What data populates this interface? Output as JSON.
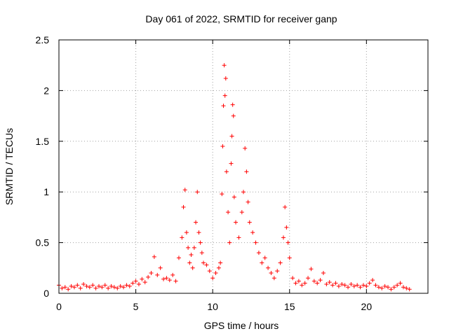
{
  "chart_data": {
    "type": "scatter",
    "title": "Day 061 of 2022, SRMTID for receiver ganp",
    "xlabel": "GPS time / hours",
    "ylabel": "SRMTID / TECUs",
    "xlim": [
      0,
      24
    ],
    "ylim": [
      0,
      2.5
    ],
    "xticks": [
      0,
      5,
      10,
      15,
      20
    ],
    "yticks": [
      0,
      0.5,
      1,
      1.5,
      2,
      2.5
    ],
    "xtick_labels": [
      "0",
      "5",
      "10",
      "15",
      "20"
    ],
    "ytick_labels": [
      "0",
      "0.5",
      "1",
      "1.5",
      "2",
      "2.5"
    ],
    "grid": true,
    "marker": "+",
    "color": "#ff0000",
    "series": [
      {
        "name": "SRMTID",
        "points": [
          [
            0.0,
            0.08
          ],
          [
            0.2,
            0.05
          ],
          [
            0.4,
            0.06
          ],
          [
            0.6,
            0.04
          ],
          [
            0.8,
            0.07
          ],
          [
            1.0,
            0.06
          ],
          [
            1.2,
            0.08
          ],
          [
            1.4,
            0.05
          ],
          [
            1.6,
            0.09
          ],
          [
            1.8,
            0.07
          ],
          [
            2.0,
            0.06
          ],
          [
            2.2,
            0.08
          ],
          [
            2.4,
            0.05
          ],
          [
            2.6,
            0.07
          ],
          [
            2.8,
            0.06
          ],
          [
            3.0,
            0.08
          ],
          [
            3.2,
            0.05
          ],
          [
            3.4,
            0.07
          ],
          [
            3.6,
            0.06
          ],
          [
            3.8,
            0.05
          ],
          [
            4.0,
            0.07
          ],
          [
            4.2,
            0.06
          ],
          [
            4.4,
            0.08
          ],
          [
            4.6,
            0.07
          ],
          [
            4.8,
            0.1
          ],
          [
            5.0,
            0.12
          ],
          [
            5.2,
            0.09
          ],
          [
            5.4,
            0.14
          ],
          [
            5.6,
            0.11
          ],
          [
            5.8,
            0.16
          ],
          [
            6.0,
            0.2
          ],
          [
            6.2,
            0.36
          ],
          [
            6.4,
            0.18
          ],
          [
            6.6,
            0.25
          ],
          [
            6.8,
            0.14
          ],
          [
            7.0,
            0.15
          ],
          [
            7.2,
            0.13
          ],
          [
            7.4,
            0.18
          ],
          [
            7.6,
            0.12
          ],
          [
            7.8,
            0.35
          ],
          [
            8.0,
            0.55
          ],
          [
            8.1,
            0.85
          ],
          [
            8.2,
            1.02
          ],
          [
            8.3,
            0.6
          ],
          [
            8.4,
            0.45
          ],
          [
            8.5,
            0.3
          ],
          [
            8.6,
            0.38
          ],
          [
            8.7,
            0.25
          ],
          [
            8.8,
            0.45
          ],
          [
            8.9,
            0.7
          ],
          [
            9.0,
            1.0
          ],
          [
            9.1,
            0.6
          ],
          [
            9.2,
            0.5
          ],
          [
            9.3,
            0.4
          ],
          [
            9.4,
            0.3
          ],
          [
            9.6,
            0.28
          ],
          [
            9.8,
            0.22
          ],
          [
            10.0,
            0.15
          ],
          [
            10.2,
            0.2
          ],
          [
            10.4,
            0.25
          ],
          [
            10.5,
            0.3
          ],
          [
            10.6,
            0.98
          ],
          [
            10.65,
            1.45
          ],
          [
            10.7,
            1.85
          ],
          [
            10.75,
            2.25
          ],
          [
            10.8,
            1.95
          ],
          [
            10.85,
            2.12
          ],
          [
            10.9,
            1.2
          ],
          [
            11.0,
            0.8
          ],
          [
            11.1,
            0.5
          ],
          [
            11.2,
            1.28
          ],
          [
            11.25,
            1.55
          ],
          [
            11.3,
            1.86
          ],
          [
            11.35,
            1.75
          ],
          [
            11.4,
            0.95
          ],
          [
            11.5,
            0.7
          ],
          [
            11.7,
            0.55
          ],
          [
            11.9,
            0.8
          ],
          [
            12.0,
            1.0
          ],
          [
            12.1,
            1.43
          ],
          [
            12.2,
            1.2
          ],
          [
            12.3,
            0.9
          ],
          [
            12.4,
            0.7
          ],
          [
            12.6,
            0.6
          ],
          [
            12.8,
            0.5
          ],
          [
            13.0,
            0.4
          ],
          [
            13.2,
            0.3
          ],
          [
            13.4,
            0.35
          ],
          [
            13.6,
            0.25
          ],
          [
            13.8,
            0.2
          ],
          [
            14.0,
            0.15
          ],
          [
            14.2,
            0.22
          ],
          [
            14.4,
            0.3
          ],
          [
            14.6,
            0.55
          ],
          [
            14.7,
            0.85
          ],
          [
            14.8,
            0.65
          ],
          [
            14.9,
            0.5
          ],
          [
            15.0,
            0.35
          ],
          [
            15.2,
            0.15
          ],
          [
            15.4,
            0.1
          ],
          [
            15.6,
            0.12
          ],
          [
            15.8,
            0.08
          ],
          [
            16.0,
            0.1
          ],
          [
            16.2,
            0.15
          ],
          [
            16.4,
            0.24
          ],
          [
            16.6,
            0.12
          ],
          [
            16.8,
            0.1
          ],
          [
            17.0,
            0.13
          ],
          [
            17.2,
            0.2
          ],
          [
            17.4,
            0.09
          ],
          [
            17.6,
            0.11
          ],
          [
            17.8,
            0.08
          ],
          [
            18.0,
            0.1
          ],
          [
            18.2,
            0.07
          ],
          [
            18.4,
            0.09
          ],
          [
            18.6,
            0.08
          ],
          [
            18.8,
            0.06
          ],
          [
            19.0,
            0.09
          ],
          [
            19.2,
            0.07
          ],
          [
            19.4,
            0.08
          ],
          [
            19.6,
            0.06
          ],
          [
            19.8,
            0.08
          ],
          [
            20.0,
            0.07
          ],
          [
            20.2,
            0.1
          ],
          [
            20.4,
            0.13
          ],
          [
            20.6,
            0.08
          ],
          [
            20.8,
            0.06
          ],
          [
            21.0,
            0.05
          ],
          [
            21.2,
            0.07
          ],
          [
            21.4,
            0.06
          ],
          [
            21.6,
            0.04
          ],
          [
            21.8,
            0.06
          ],
          [
            22.0,
            0.08
          ],
          [
            22.2,
            0.1
          ],
          [
            22.4,
            0.06
          ],
          [
            22.6,
            0.05
          ],
          [
            22.8,
            0.04
          ]
        ]
      }
    ]
  }
}
